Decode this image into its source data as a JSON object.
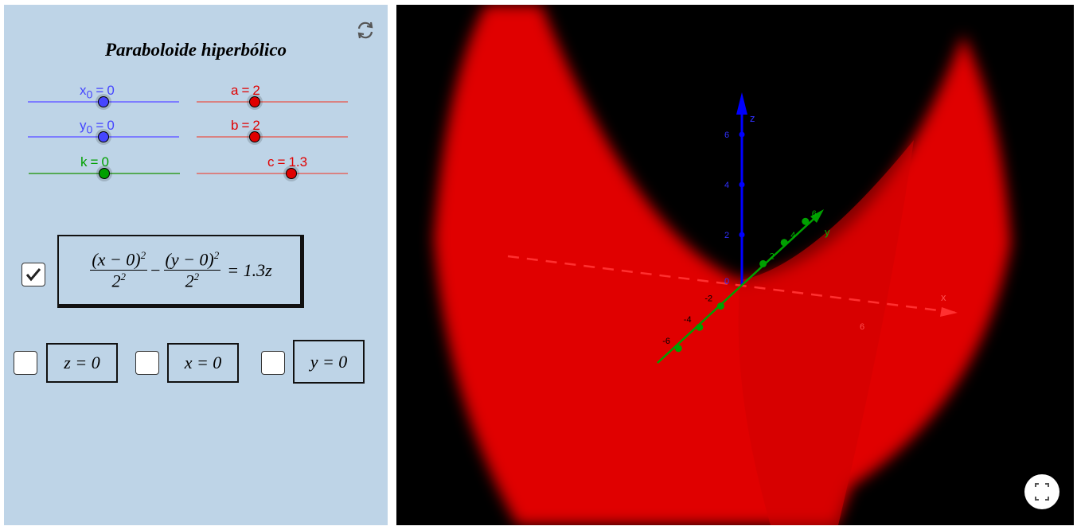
{
  "title": "Paraboloide hiperbólico",
  "sliders": [
    {
      "name": "x",
      "sub": "0",
      "eq": "=",
      "value": 0,
      "color": "#4646ff",
      "line": "#7d7dff"
    },
    {
      "name": "a",
      "sub": "",
      "eq": "=",
      "value": 2,
      "color": "#e00000",
      "line": "#d98282"
    },
    {
      "name": "y",
      "sub": "0",
      "eq": "=",
      "value": 0,
      "color": "#4646ff",
      "line": "#7d7dff"
    },
    {
      "name": "b",
      "sub": "",
      "eq": "=",
      "value": 2,
      "color": "#e00000",
      "line": "#d98282"
    },
    {
      "name": "k",
      "sub": "",
      "eq": "=",
      "value": 0,
      "color": "#00a000",
      "line": "#55aa55"
    },
    {
      "name": "c",
      "sub": "",
      "eq": "=",
      "value": 1.3,
      "color": "#e00000",
      "line": "#d98282"
    }
  ],
  "equation": {
    "checked": true,
    "term1": {
      "num": "(x − 0)",
      "num_exp": "2",
      "den": "2",
      "den_exp": "2"
    },
    "op": "−",
    "term2": {
      "num": "(y − 0)",
      "num_exp": "2",
      "den": "2",
      "den_exp": "2"
    },
    "rhs": "= 1.3z"
  },
  "planes": [
    {
      "label": "z = 0",
      "checked": false
    },
    {
      "label": "x = 0",
      "checked": false
    },
    {
      "label": "y = 0",
      "checked": false
    }
  ],
  "view3d": {
    "z_axis": {
      "label": "z",
      "ticks": [
        2,
        4,
        6
      ]
    },
    "y_axis": {
      "label": "y",
      "ticks": [
        -6,
        -4,
        -2,
        2,
        4,
        6
      ]
    },
    "x_axis": {
      "label": "x",
      "ticks": [
        6
      ]
    },
    "origin": "0"
  }
}
